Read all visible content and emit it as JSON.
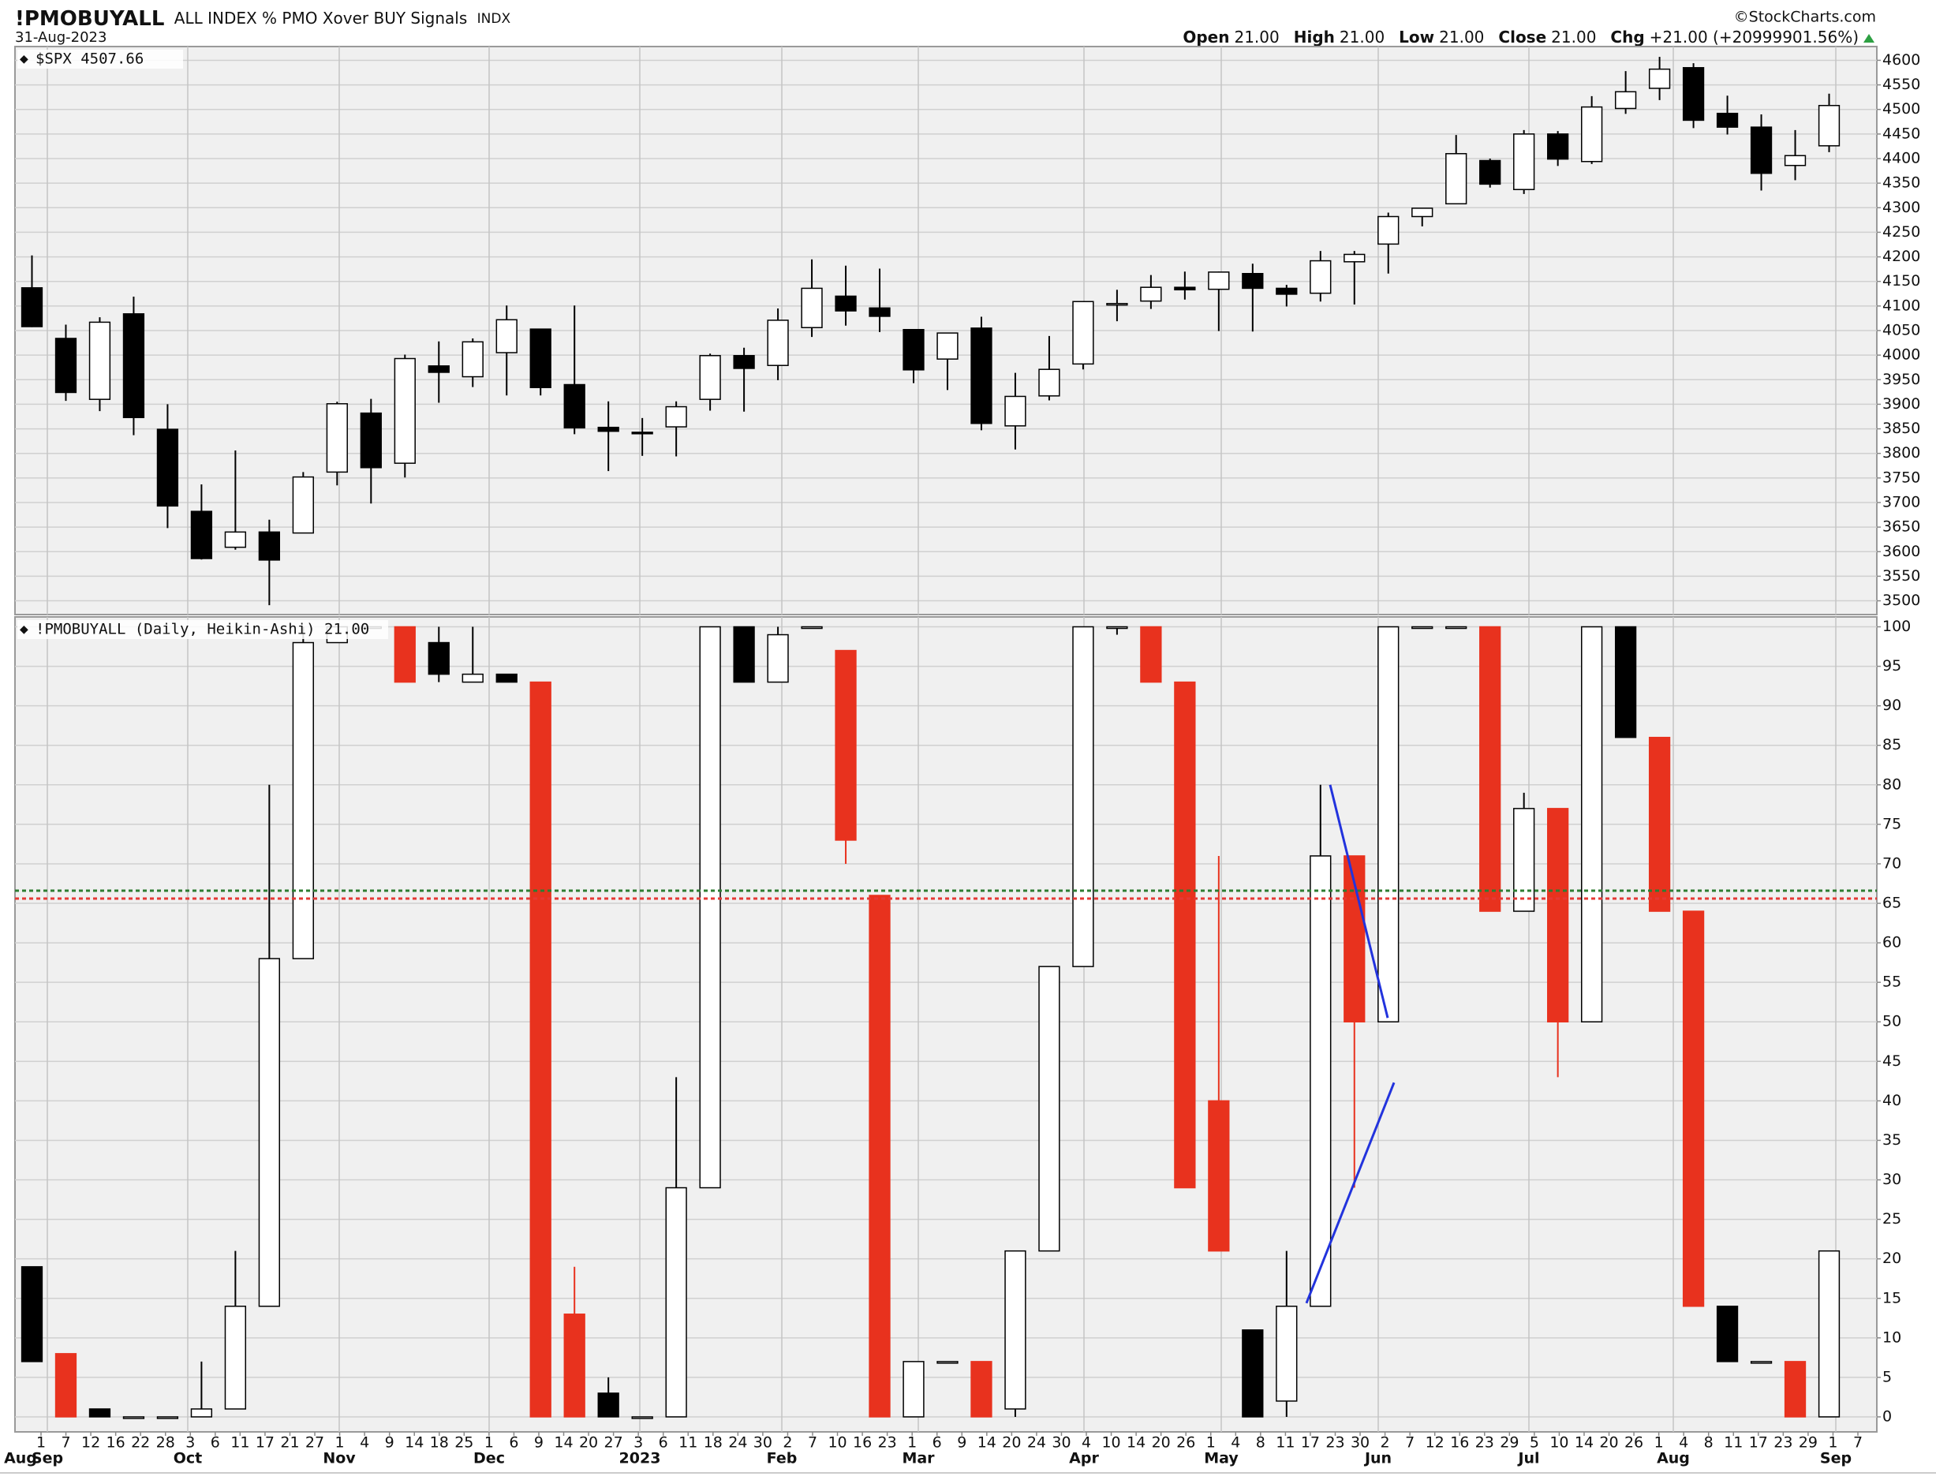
{
  "header": {
    "symbol": "!PMOBUYALL",
    "description": "ALL INDEX % PMO Xover BUY Signals",
    "exchange": "INDX",
    "date": "31-Aug-2023",
    "source": "©StockCharts.com",
    "quote": [
      {
        "label": "Open",
        "value": "21.00"
      },
      {
        "label": "High",
        "value": "21.00"
      },
      {
        "label": "Low",
        "value": "21.00"
      },
      {
        "label": "Close",
        "value": "21.00"
      },
      {
        "label": "Chg",
        "value": "+21.00 (+20999901.56%)"
      }
    ]
  },
  "x_axis": {
    "days": [
      "1",
      "7",
      "12",
      "16",
      "22",
      "28",
      "3",
      "6",
      "11",
      "17",
      "21",
      "27",
      "1",
      "4",
      "9",
      "14",
      "18",
      "25",
      "1",
      "6",
      "9",
      "14",
      "20",
      "27",
      "3",
      "6",
      "11",
      "18",
      "24",
      "30",
      "2",
      "7",
      "10",
      "16",
      "23",
      "1",
      "6",
      "9",
      "14",
      "20",
      "24",
      "30",
      "4",
      "10",
      "14",
      "20",
      "26",
      "1",
      "4",
      "8",
      "11",
      "17",
      "23",
      "30",
      "2",
      "7",
      "12",
      "16",
      "23",
      "29",
      "5",
      "10",
      "14",
      "20",
      "26",
      "1",
      "4",
      "8",
      "11",
      "17",
      "23",
      "29",
      "1",
      "7"
    ],
    "months": [
      "Aug",
      "Sep",
      "Oct",
      "Nov",
      "Dec",
      "2023",
      "Feb",
      "Mar",
      "Apr",
      "May",
      "Jun",
      "Jul",
      "Aug",
      "Sep"
    ]
  },
  "chart_data": [
    {
      "type": "candlestick",
      "title": "$SPX 4507.66",
      "up_color": "#ffffff",
      "down_color": "#000000",
      "grid": true,
      "ylim": [
        3472,
        4628
      ],
      "yticks": [
        3500,
        3550,
        3600,
        3650,
        3700,
        3750,
        3800,
        3850,
        3900,
        3950,
        4000,
        4050,
        4100,
        4150,
        4200,
        4250,
        4300,
        4350,
        4400,
        4450,
        4500,
        4550,
        4600
      ],
      "open": [
        4137,
        4034,
        3910,
        4084,
        3849,
        3682,
        3609,
        3640,
        3638,
        3762,
        3882,
        3780,
        3978,
        3956,
        4005,
        4053,
        3940,
        3853,
        3843,
        3854,
        3910,
        3999,
        3979,
        4056,
        4120,
        4096,
        4052,
        3992,
        4055,
        3856,
        3917,
        3982,
        4102,
        4110,
        4138,
        4134,
        4166,
        4136,
        4126,
        4190,
        4226,
        4282,
        4308,
        4396,
        4337,
        4450,
        4394,
        4502,
        4543,
        4585,
        4492,
        4464,
        4386,
        4426
      ],
      "high": [
        4203,
        4062,
        4077,
        4119,
        3900,
        3737,
        3806,
        3665,
        3762,
        3905,
        3911,
        4001,
        4028,
        4034,
        4101,
        4053,
        4101,
        3906,
        3872,
        3906,
        4003,
        4015,
        4095,
        4195,
        4182,
        4176,
        4052,
        4046,
        4078,
        3964,
        4039,
        4110,
        4133,
        4163,
        4170,
        4170,
        4186,
        4143,
        4212,
        4212,
        4290,
        4299,
        4448,
        4400,
        4458,
        4456,
        4527,
        4578,
        4607,
        4594,
        4528,
        4490,
        4458,
        4532
      ],
      "low": [
        4057,
        3907,
        3886,
        3837,
        3648,
        3584,
        3604,
        3491,
        3640,
        3735,
        3698,
        3751,
        3903,
        3935,
        3918,
        3918,
        3839,
        3764,
        3795,
        3794,
        3887,
        3885,
        3949,
        4037,
        4060,
        4047,
        3943,
        3929,
        3847,
        3808,
        3908,
        3971,
        4069,
        4094,
        4113,
        4049,
        4048,
        4099,
        4109,
        4103,
        4166,
        4262,
        4307,
        4341,
        4328,
        4385,
        4389,
        4491,
        4519,
        4462,
        4449,
        4335,
        4356,
        4413
      ],
      "close": [
        4058,
        3924,
        4067,
        3873,
        3693,
        3586,
        3640,
        3583,
        3752,
        3901,
        3771,
        3993,
        3965,
        4027,
        4072,
        3934,
        3852,
        3845,
        3840,
        3895,
        3999,
        3973,
        4071,
        4136,
        4090,
        4079,
        3970,
        4045,
        3861,
        3916,
        3971,
        4109,
        4105,
        4138,
        4133,
        4169,
        4136,
        4124,
        4192,
        4205,
        4282,
        4299,
        4410,
        4348,
        4450,
        4399,
        4505,
        4536,
        4582,
        4478,
        4464,
        4370,
        4406,
        4508
      ]
    },
    {
      "type": "heikin-ashi",
      "title": "!PMOBUYALL (Daily, Heikin-Ashi) 21.00",
      "grid": true,
      "ylim": [
        -1.9,
        101.25
      ],
      "yticks": [
        0,
        5,
        10,
        15,
        20,
        25,
        30,
        35,
        40,
        45,
        50,
        55,
        60,
        65,
        70,
        75,
        80,
        85,
        90,
        95,
        100
      ],
      "open": [
        19,
        8,
        1,
        0,
        0,
        0,
        1,
        14,
        58,
        98,
        100,
        100,
        98,
        93,
        94,
        93,
        13,
        3,
        0,
        0,
        29,
        100,
        93,
        100,
        97,
        66,
        0,
        7,
        7,
        1,
        21,
        57,
        100,
        100,
        93,
        40,
        11,
        2,
        14,
        71,
        50,
        100,
        100,
        100,
        64,
        77,
        50,
        100,
        86,
        64,
        14,
        7,
        7,
        0
      ],
      "high": [
        19,
        8,
        1,
        0,
        0,
        7,
        21,
        80,
        100,
        100,
        100,
        100,
        100,
        100,
        94,
        93,
        19,
        5,
        0,
        43,
        100,
        100,
        100,
        100,
        97,
        66,
        7,
        7,
        7,
        21,
        57,
        100,
        100,
        100,
        93,
        71,
        11,
        21,
        80,
        71,
        100,
        100,
        100,
        100,
        79,
        77,
        100,
        100,
        86,
        64,
        14,
        7,
        7,
        21
      ],
      "low": [
        7,
        0,
        0,
        0,
        0,
        0,
        1,
        14,
        58,
        98,
        100,
        93,
        93,
        93,
        93,
        0,
        0,
        0,
        0,
        0,
        29,
        93,
        93,
        100,
        70,
        0,
        0,
        7,
        0,
        0,
        21,
        57,
        99,
        93,
        29,
        21,
        0,
        0,
        14,
        29,
        50,
        100,
        100,
        64,
        64,
        43,
        50,
        86,
        64,
        14,
        7,
        7,
        0,
        0
      ],
      "close": [
        7,
        0,
        0,
        0,
        0,
        1,
        14,
        58,
        98,
        100,
        100,
        93,
        94,
        94,
        93,
        0,
        0,
        0,
        0,
        29,
        100,
        93,
        99,
        100,
        73,
        0,
        7,
        7,
        0,
        21,
        57,
        100,
        100,
        93,
        29,
        21,
        0,
        14,
        71,
        50,
        100,
        100,
        100,
        64,
        77,
        50,
        100,
        86,
        64,
        14,
        7,
        7,
        0,
        21
      ],
      "fills": [
        "#000000",
        "#e8321e",
        "#000000",
        "#ffffff",
        "#ffffff",
        "#ffffff",
        "#ffffff",
        "#ffffff",
        "#ffffff",
        "#ffffff",
        "#ffffff",
        "#e8321e",
        "#000000",
        "#ffffff",
        "#000000",
        "#e8321e",
        "#e8321e",
        "#000000",
        "#ffffff",
        "#ffffff",
        "#ffffff",
        "#000000",
        "#ffffff",
        "#ffffff",
        "#e8321e",
        "#e8321e",
        "#ffffff",
        "#ffffff",
        "#e8321e",
        "#ffffff",
        "#ffffff",
        "#ffffff",
        "#ffffff",
        "#e8321e",
        "#e8321e",
        "#e8321e",
        "#000000",
        "#ffffff",
        "#ffffff",
        "#e8321e",
        "#ffffff",
        "#ffffff",
        "#ffffff",
        "#e8321e",
        "#ffffff",
        "#e8321e",
        "#ffffff",
        "#000000",
        "#e8321e",
        "#e8321e",
        "#000000",
        "#ffffff",
        "#e8321e",
        "#ffffff"
      ],
      "hlines": [
        {
          "value": 66.6,
          "color": "#2e7d32"
        },
        {
          "value": 65.6,
          "color": "#e53935"
        }
      ],
      "trendlines": [
        {
          "color": "#2233dd",
          "y": [
            80,
            50.5
          ]
        },
        {
          "color": "#2233dd",
          "y": [
            14.4,
            42.3
          ]
        }
      ]
    }
  ]
}
